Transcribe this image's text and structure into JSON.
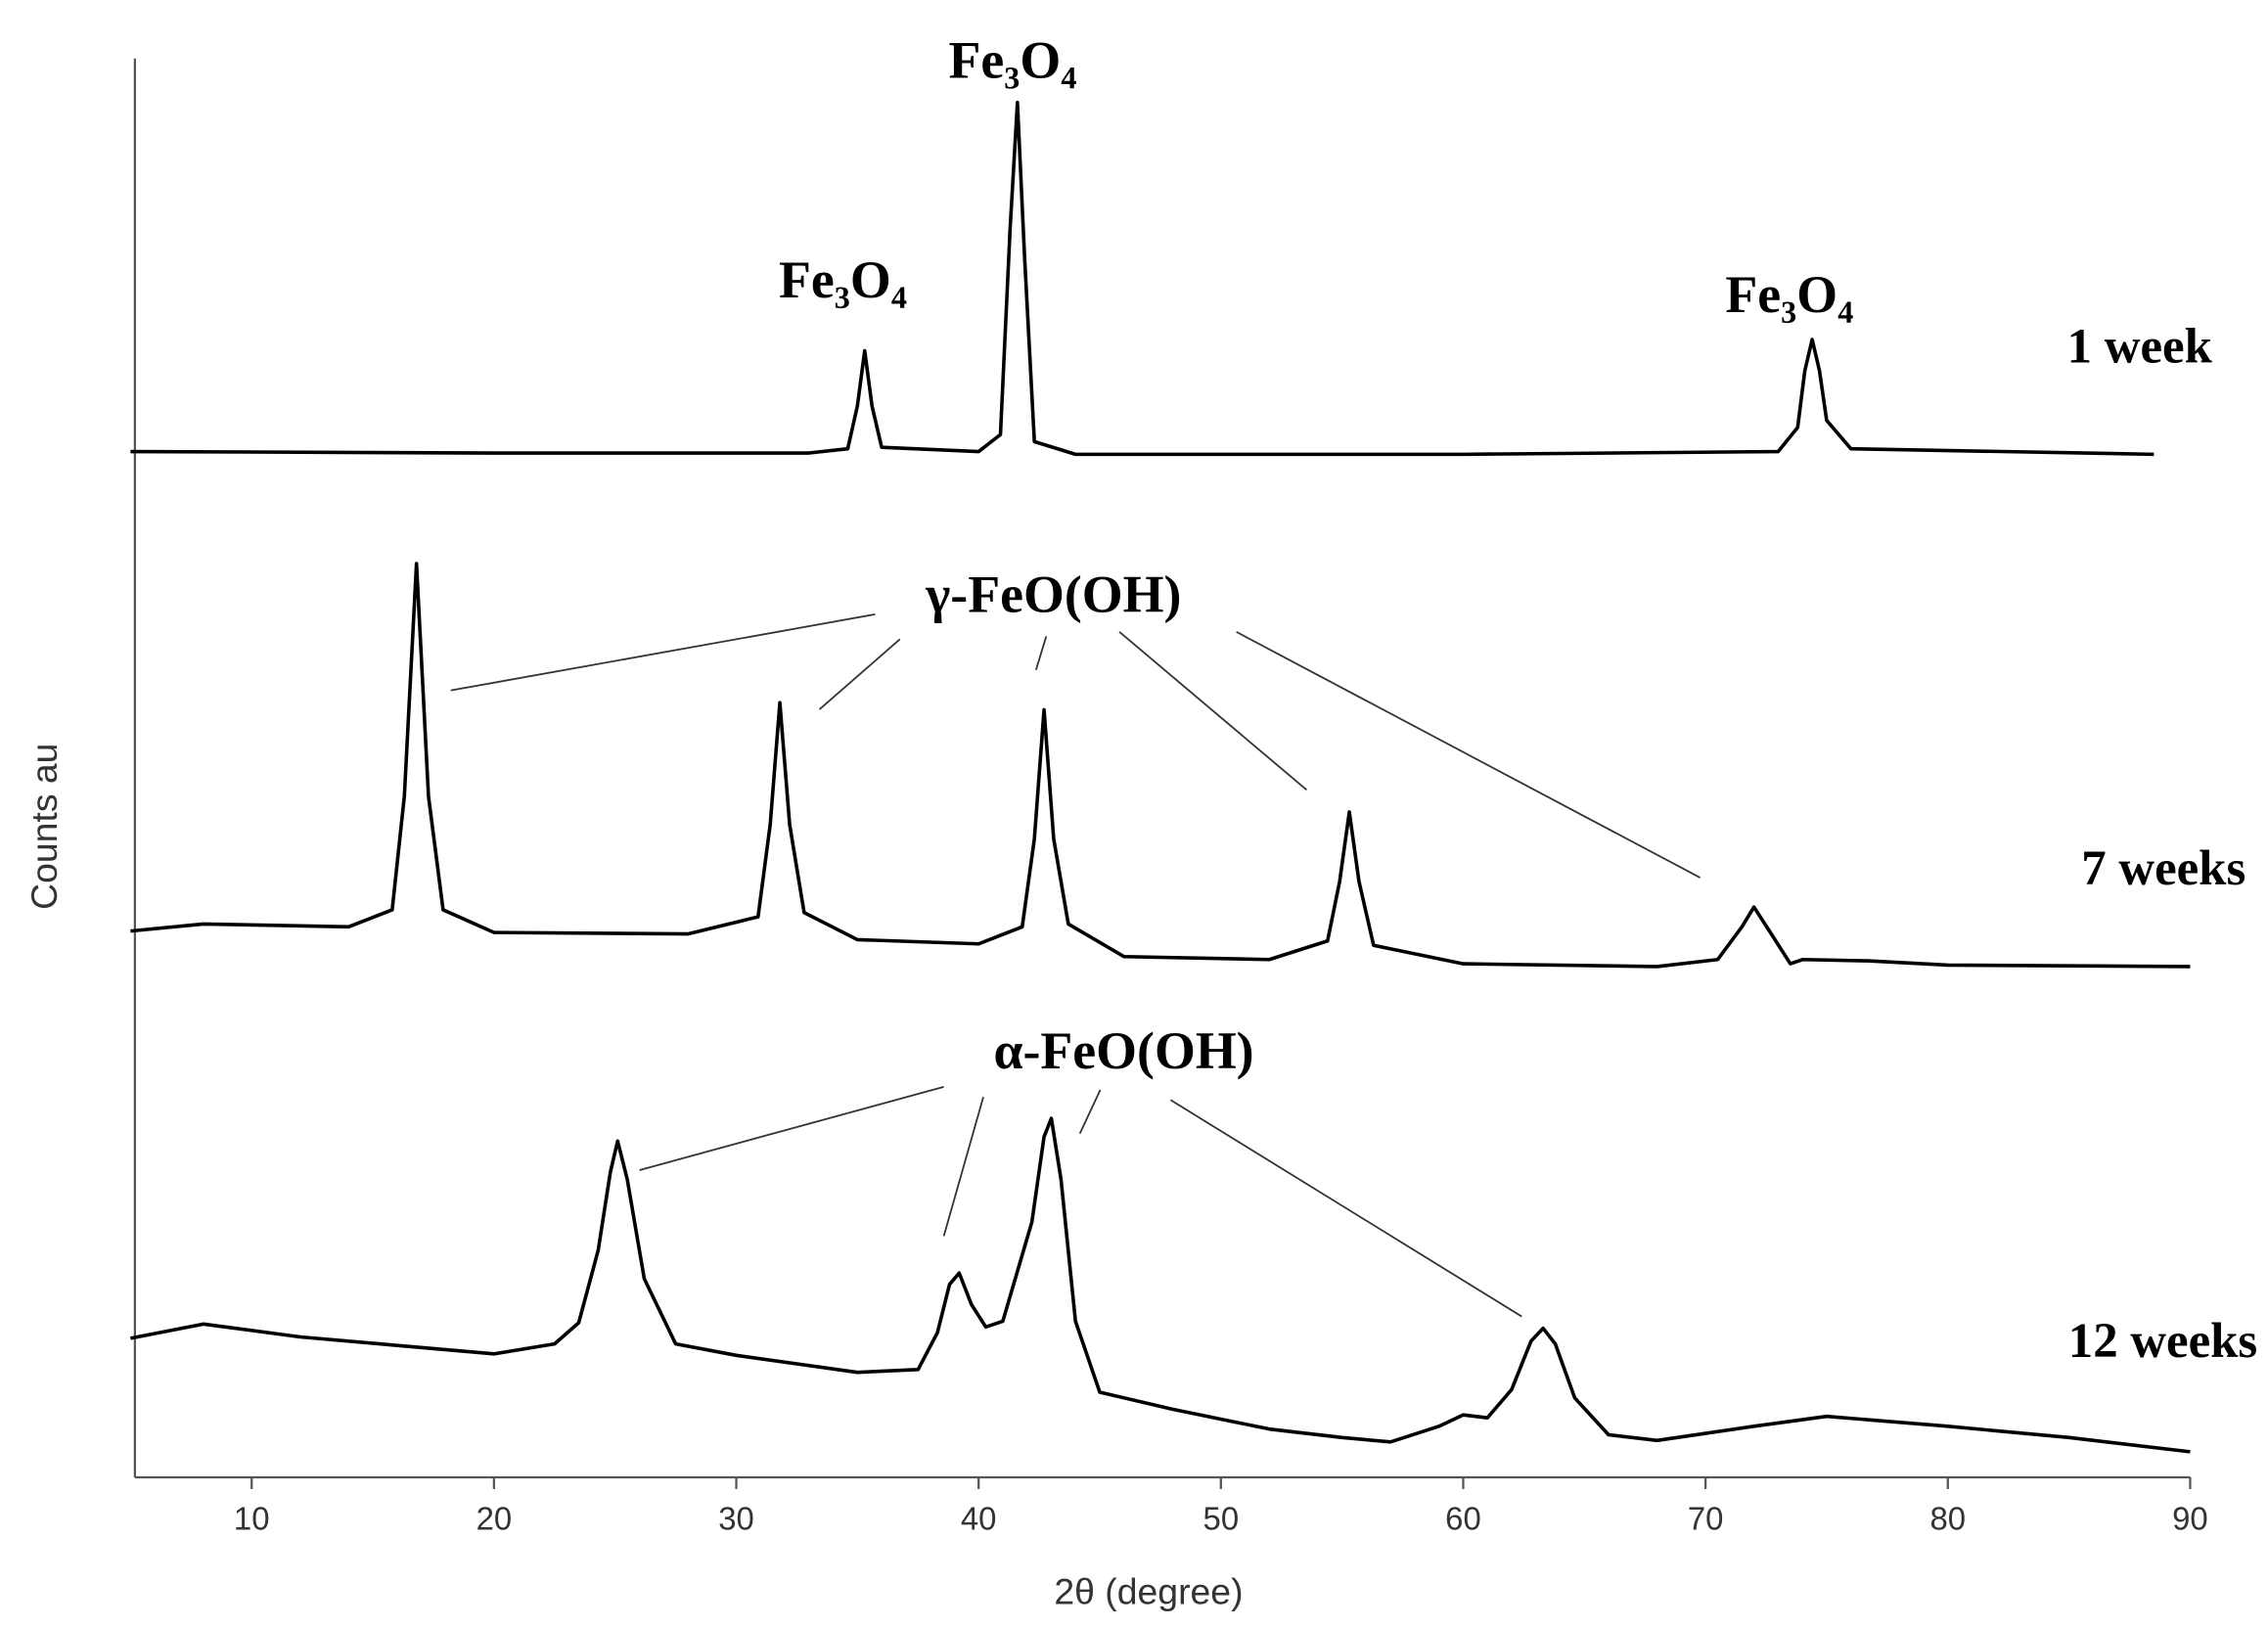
{
  "chart_data": {
    "type": "line",
    "xlabel": "2θ (degree)",
    "ylabel": "Counts  au",
    "xlim": [
      5,
      90
    ],
    "xticks": [
      10,
      20,
      30,
      40,
      50,
      60,
      70,
      80,
      90
    ],
    "ylim": [
      0,
      100
    ],
    "series": [
      {
        "name": "1 week",
        "color": "#000000",
        "x": [
          5,
          20,
          33,
          34.6,
          35.0,
          35.3,
          35.6,
          36.0,
          40,
          40.9,
          41.3,
          41.6,
          41.9,
          42.3,
          44,
          60,
          73,
          73.8,
          74.1,
          74.4,
          74.7,
          75.0,
          76,
          88.5
        ],
        "values": [
          72.3,
          72.2,
          72.2,
          72.5,
          75.5,
          79.4,
          75.5,
          72.6,
          72.3,
          73.5,
          88,
          96.9,
          86,
          73,
          72.1,
          72.1,
          72.3,
          74,
          78,
          80.2,
          78,
          74.5,
          72.5,
          72.1
        ]
      },
      {
        "name": "7 weeks",
        "color": "#000000",
        "x": [
          5,
          8,
          14,
          15.8,
          16.3,
          16.8,
          17.3,
          17.9,
          20,
          28,
          30.9,
          31.4,
          31.8,
          32.2,
          32.8,
          35,
          40,
          41.8,
          42.3,
          42.7,
          43.1,
          43.7,
          46,
          52,
          54.4,
          54.9,
          55.3,
          55.7,
          56.3,
          60,
          68,
          70.5,
          71.5,
          72,
          72.6,
          73.5,
          74,
          76.7,
          80,
          90
        ],
        "values": [
          38.5,
          39.0,
          38.8,
          40.0,
          48,
          64.4,
          48,
          40,
          38.4,
          38.3,
          39.5,
          46,
          54.6,
          46,
          39.8,
          37.9,
          37.6,
          38.8,
          45,
          54.1,
          45,
          39,
          36.7,
          36.5,
          37.8,
          42,
          46.9,
          42,
          37.5,
          36.2,
          36.0,
          36.5,
          38.8,
          40.2,
          38.6,
          36.2,
          36.5,
          36.4,
          36.1,
          36.0
        ]
      },
      {
        "name": "12 weeks",
        "color": "#000000",
        "x": [
          5,
          8,
          12,
          16,
          20,
          22.5,
          23.5,
          24.3,
          24.8,
          25.1,
          25.5,
          26.2,
          27.5,
          30,
          35,
          37.5,
          38.3,
          38.8,
          39.2,
          39.7,
          40.3,
          41,
          42.2,
          42.7,
          43.0,
          43.4,
          44,
          45,
          48,
          52,
          55,
          57,
          59,
          60,
          61,
          62,
          62.8,
          63.3,
          63.8,
          64.6,
          66,
          68,
          72,
          75,
          80,
          85,
          90
        ],
        "values": [
          9.8,
          10.8,
          9.9,
          9.3,
          8.7,
          9.4,
          10.9,
          16,
          21.5,
          23.7,
          21,
          14,
          9.4,
          8.6,
          7.4,
          7.6,
          10.2,
          13.6,
          14.4,
          12.2,
          10.6,
          11,
          18,
          24,
          25.3,
          21,
          11,
          6.0,
          4.8,
          3.4,
          2.8,
          2.5,
          3.6,
          4.4,
          4.2,
          6.2,
          9.6,
          10.5,
          9.4,
          5.6,
          3.0,
          2.6,
          3.6,
          4.3,
          3.6,
          2.8,
          1.8
        ]
      }
    ],
    "annotations": [
      "Fe₃O₄",
      "Fe₃O₄",
      "Fe₃O₄",
      "γ-FeO(OH)",
      "α-FeO(OH)"
    ]
  }
}
